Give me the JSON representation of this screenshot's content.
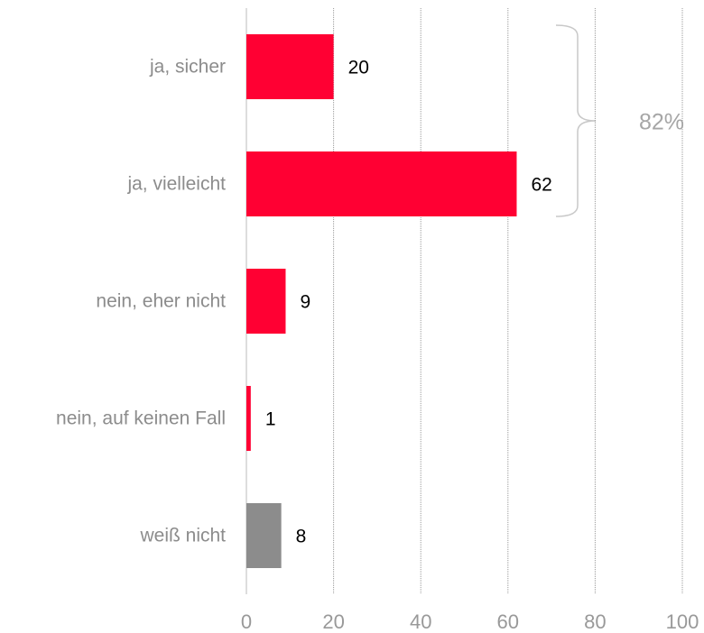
{
  "chart_data": {
    "type": "barh",
    "categories": [
      "ja, sicher",
      "ja, vielleicht",
      "nein, eher nicht",
      "nein, auf keinen Fall",
      "weiß nicht"
    ],
    "values": [
      20,
      62,
      9,
      1,
      8
    ],
    "colors": [
      "#ff0033",
      "#ff0033",
      "#ff0033",
      "#ff0033",
      "#8c8c8c"
    ],
    "xlim": [
      0,
      100
    ],
    "xticks": [
      0,
      20,
      40,
      60,
      80,
      100
    ],
    "grid": true,
    "annotation": "82%"
  }
}
